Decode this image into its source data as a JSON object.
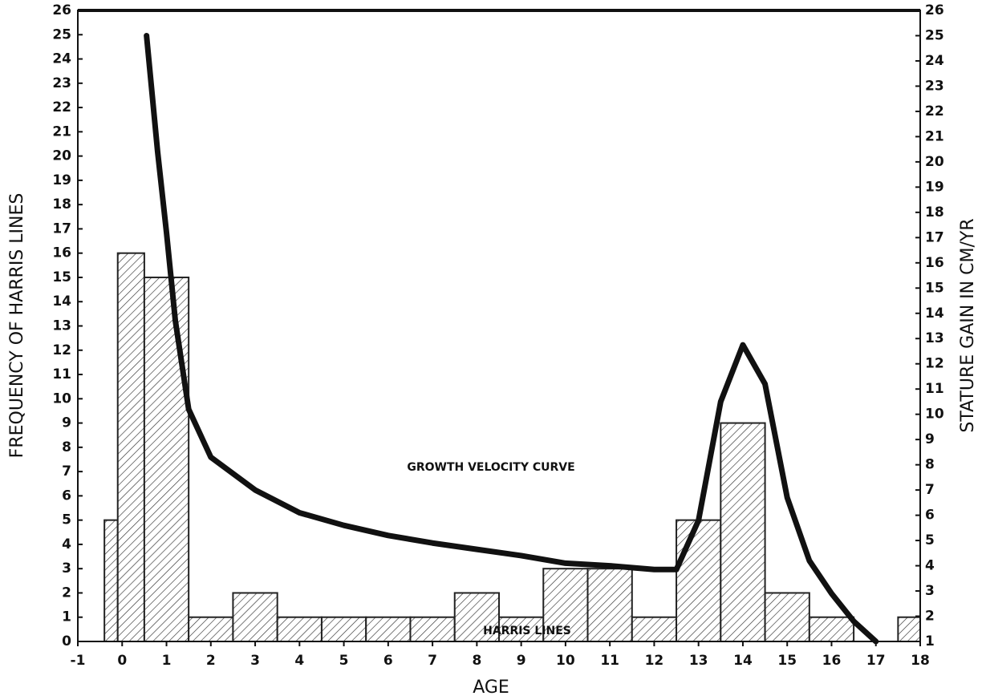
{
  "chart_data": {
    "type": "histogram",
    "xlabel": "AGE",
    "ylabel": "FREQUENCY OF HARRIS LINES",
    "y2label": "STATURE GAIN IN CM/YR",
    "annotations": [
      "GROWTH VELOCITY CURVE",
      "HARRIS LINES"
    ],
    "bins": [
      -0.4,
      -0.1,
      0.5,
      1.5,
      2.5,
      3.5,
      4.5,
      5.5,
      6.5,
      7.5,
      8.5,
      9.5,
      10.5,
      11.5,
      12.5,
      13.5,
      14.5,
      15.5,
      16.5,
      17.5,
      18
    ],
    "counts": [
      5,
      16,
      15,
      1,
      2,
      1,
      1,
      1,
      1,
      2,
      1,
      3,
      3,
      1,
      5,
      9,
      2,
      1,
      0,
      1
    ],
    "color": "#222222",
    "series": [
      {
        "type": "line",
        "axis": "y2",
        "color": "#111111",
        "x": [
          0.55,
          0.8,
          1.0,
          1.2,
          1.5,
          2,
          3,
          4,
          5,
          6,
          7,
          8,
          9,
          10,
          11,
          12,
          12.5,
          13,
          13.5,
          14,
          14.5,
          15,
          15.5,
          16,
          16.5,
          17
        ],
        "values": [
          25.0,
          20.4,
          17.2,
          13.7,
          10.2,
          8.3,
          7.0,
          6.1,
          5.6,
          5.2,
          4.9,
          4.65,
          4.4,
          4.1,
          4.0,
          3.85,
          3.85,
          5.8,
          10.5,
          12.75,
          11.2,
          6.7,
          4.2,
          2.9,
          1.8,
          1.0
        ]
      }
    ],
    "xlim": [
      -1,
      18
    ],
    "xticks": [
      -1,
      0,
      1,
      2,
      3,
      4,
      5,
      6,
      7,
      8,
      9,
      10,
      11,
      12,
      13,
      14,
      15,
      16,
      17,
      18
    ],
    "ylim": [
      0,
      26
    ],
    "yticks": [
      0,
      1,
      2,
      3,
      4,
      5,
      6,
      7,
      8,
      9,
      10,
      11,
      12,
      13,
      14,
      15,
      16,
      17,
      18,
      19,
      20,
      21,
      22,
      23,
      24,
      25,
      26
    ],
    "y2lim": [
      1,
      26
    ],
    "y2ticks": [
      1,
      2,
      3,
      4,
      5,
      6,
      7,
      8,
      9,
      10,
      11,
      12,
      13,
      14,
      15,
      16,
      17,
      18,
      19,
      20,
      21,
      22,
      23,
      24,
      25,
      26
    ]
  }
}
